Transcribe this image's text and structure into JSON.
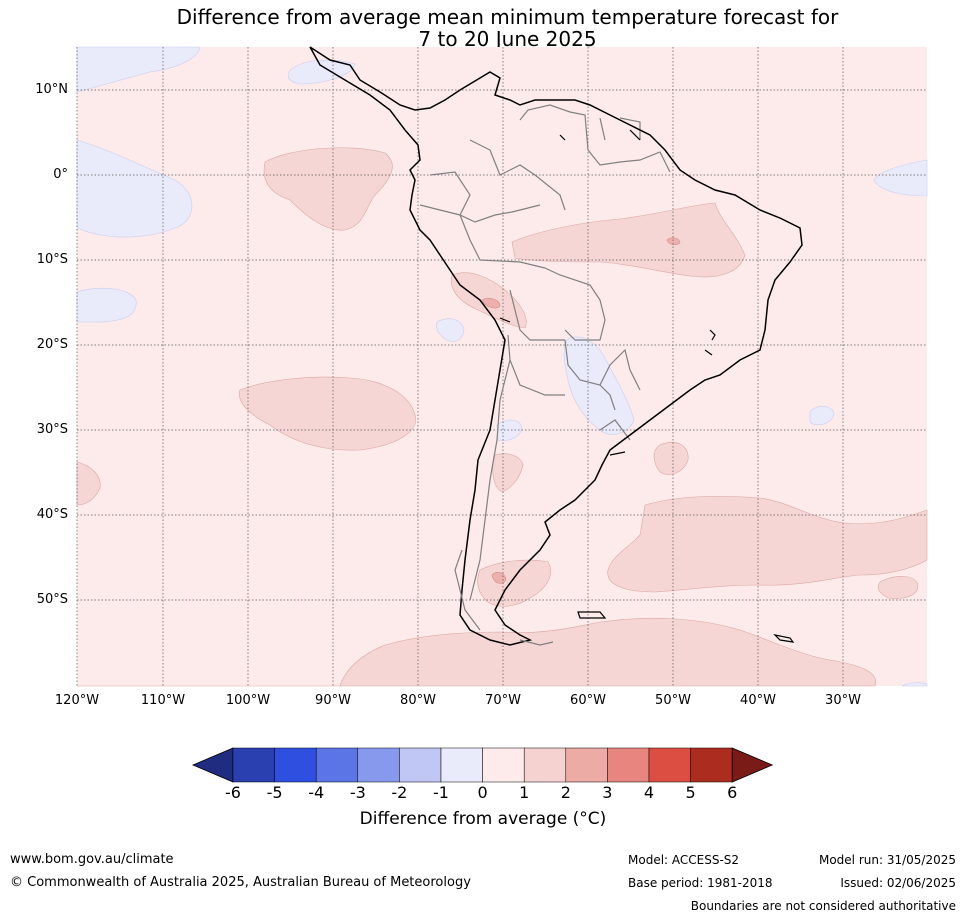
{
  "title_line1": "Difference from average mean minimum temperature forecast for",
  "title_line2": "7 to 20 June 2025",
  "lat_labels": [
    "10°N",
    "0°",
    "10°S",
    "20°S",
    "30°S",
    "40°S",
    "50°S"
  ],
  "lon_labels": [
    "120°W",
    "110°W",
    "100°W",
    "90°W",
    "80°W",
    "70°W",
    "60°W",
    "50°W",
    "40°W",
    "30°W"
  ],
  "colorbar": {
    "ticks": [
      "-6",
      "-5",
      "-4",
      "-3",
      "-2",
      "-1",
      "0",
      "1",
      "2",
      "3",
      "4",
      "5",
      "6"
    ],
    "colors": [
      "#1f2c80",
      "#2a3fb0",
      "#2f4fe0",
      "#5b74e6",
      "#8799ec",
      "#c0c7f4",
      "#e9ebfb",
      "#fcebea",
      "#f5d2d0",
      "#edaba6",
      "#e8857e",
      "#dc4e42",
      "#ad2c20",
      "#7a1b18"
    ],
    "label": "Difference from average (°C)"
  },
  "footer": {
    "website": "www.bom.gov.au/climate",
    "copyright": "© Commonwealth of Australia 2025, Australian Bureau of Meteorology",
    "model": "Model: ACCESS-S2",
    "base_period": "Base period: 1981-2018",
    "model_run": "Model run: 31/05/2025",
    "issued": "Issued: 02/06/2025",
    "disclaimer": "Boundaries are not considered authoritative"
  },
  "map_colors": {
    "bg": "#fcebea",
    "warm": "#f5d6d4",
    "warmer": "#eeb0ac",
    "cool": "#e9ebfb"
  }
}
